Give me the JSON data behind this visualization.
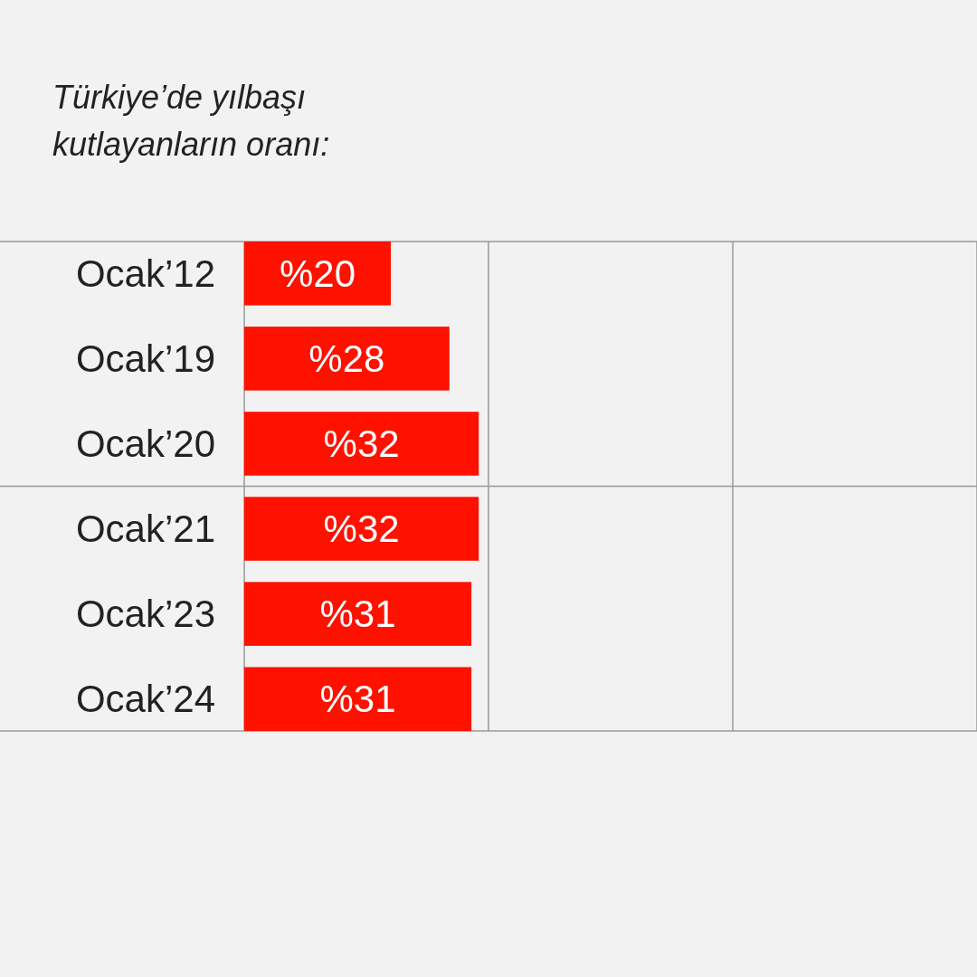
{
  "chart_data": {
    "type": "bar",
    "orientation": "horizontal",
    "title": "Türkiye’de yılbaşı\nkutlayanların oranı:",
    "categories": [
      "Ocak’12",
      "Ocak’19",
      "Ocak’20",
      "Ocak’21",
      "Ocak’23",
      "Ocak’24"
    ],
    "values": [
      20,
      28,
      32,
      32,
      31,
      31
    ],
    "value_labels": [
      "%20",
      "%28",
      "%32",
      "%32",
      "%31",
      "%31"
    ],
    "color": "#ff1100",
    "xlim": [
      0,
      100
    ],
    "xticks": [
      {
        "value": 0,
        "label": null
      },
      {
        "value": 33.33,
        "label": null
      },
      {
        "value": 66.67,
        "label": null
      },
      {
        "value": 100,
        "label": null
      }
    ],
    "grid": true
  }
}
